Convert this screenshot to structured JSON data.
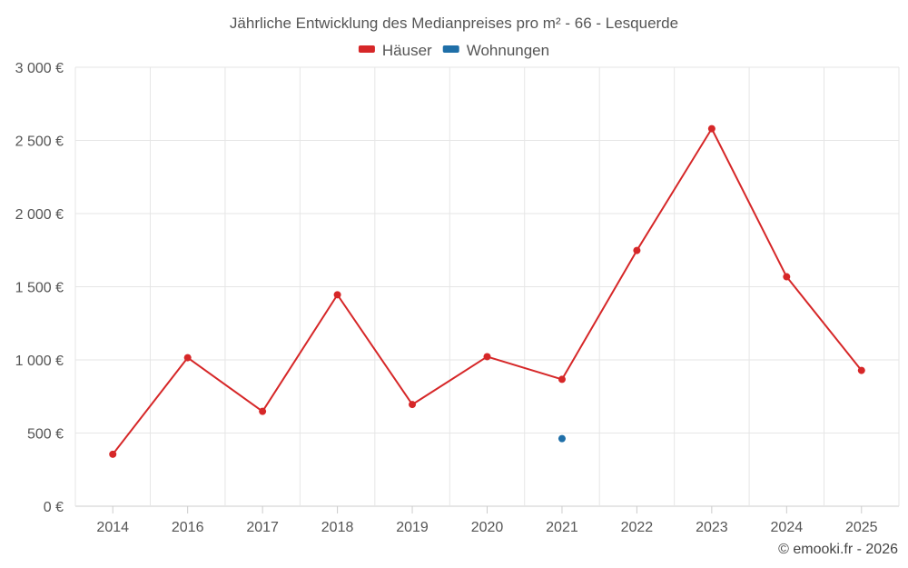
{
  "chart_data": {
    "type": "line",
    "title": "Jährliche Entwicklung des Medianpreises pro m² - 66 - Lesquerde",
    "categories": [
      "2014",
      "2016",
      "2017",
      "2018",
      "2019",
      "2020",
      "2021",
      "2022",
      "2023",
      "2024",
      "2025"
    ],
    "series": [
      {
        "name": "Häuser",
        "color": "#d62728",
        "values": [
          355,
          1015,
          648,
          1445,
          695,
          1022,
          867,
          1748,
          2580,
          1568,
          928
        ]
      },
      {
        "name": "Wohnungen",
        "color": "#1f6fa8",
        "values": [
          null,
          null,
          null,
          null,
          null,
          null,
          462,
          null,
          null,
          null,
          null
        ]
      }
    ],
    "ylim": [
      0,
      3000
    ],
    "yticks": [
      0,
      500,
      1000,
      1500,
      2000,
      2500,
      3000
    ],
    "ytick_labels": [
      "0 €",
      "500 €",
      "1 000 €",
      "1 500 €",
      "2 000 €",
      "2 500 €",
      "3 000 €"
    ],
    "grid": true,
    "legend_position": "top-center",
    "xlabel": "",
    "ylabel": ""
  },
  "credit": "© emooki.fr - 2026"
}
